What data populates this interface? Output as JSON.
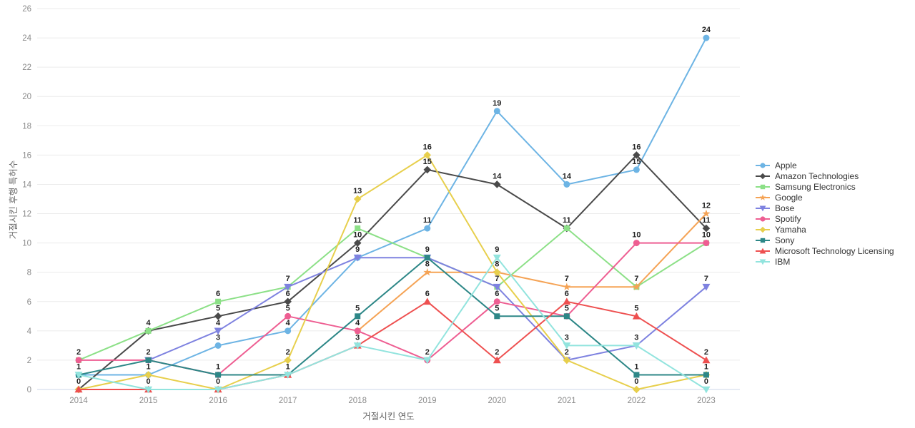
{
  "chart_data": {
    "type": "line",
    "title": "",
    "xlabel": "거절시킨 연도",
    "ylabel": "거절시킨 후행 특허수",
    "x": [
      2014,
      2015,
      2016,
      2017,
      2018,
      2019,
      2020,
      2021,
      2022,
      2023
    ],
    "ylim": [
      0,
      26
    ],
    "yticks": [
      0,
      2,
      4,
      6,
      8,
      10,
      12,
      14,
      16,
      18,
      20,
      22,
      24,
      26
    ],
    "grid": "horizontal",
    "legend_position": "right",
    "point_labels": "shown above each point, deduplicated per x/value cluster",
    "series": [
      {
        "name": "Apple",
        "color": "#6db4e4",
        "marker": "circle",
        "values": [
          1,
          1,
          3,
          4,
          9,
          11,
          19,
          14,
          15,
          24
        ]
      },
      {
        "name": "Amazon Technologies",
        "color": "#4a4a4a",
        "marker": "diamond",
        "values": [
          0,
          4,
          5,
          6,
          10,
          15,
          14,
          11,
          16,
          11
        ]
      },
      {
        "name": "Samsung Electronics",
        "color": "#8ce087",
        "marker": "square",
        "values": [
          2,
          4,
          6,
          7,
          11,
          9,
          7,
          11,
          7,
          10
        ]
      },
      {
        "name": "Google",
        "color": "#f5a355",
        "marker": "star",
        "values": [
          null,
          null,
          null,
          null,
          4,
          8,
          8,
          7,
          7,
          12
        ]
      },
      {
        "name": "Bose",
        "color": "#7e82e0",
        "marker": "triangle-down",
        "values": [
          null,
          2,
          4,
          7,
          9,
          9,
          7,
          2,
          3,
          7
        ]
      },
      {
        "name": "Spotify",
        "color": "#ee5e92",
        "marker": "circle",
        "values": [
          2,
          2,
          1,
          5,
          4,
          2,
          6,
          5,
          10,
          10
        ]
      },
      {
        "name": "Yamaha",
        "color": "#e7cf4c",
        "marker": "diamond",
        "values": [
          0,
          1,
          0,
          2,
          13,
          16,
          8,
          2,
          0,
          1
        ]
      },
      {
        "name": "Sony",
        "color": "#2d8787",
        "marker": "square",
        "values": [
          1,
          2,
          1,
          1,
          5,
          9,
          5,
          5,
          1,
          1
        ]
      },
      {
        "name": "Microsoft Technology Licensing",
        "color": "#ee5050",
        "marker": "triangle-up",
        "values": [
          0,
          0,
          0,
          1,
          3,
          6,
          2,
          6,
          5,
          2
        ]
      },
      {
        "name": "IBM",
        "color": "#92e4de",
        "marker": "triangle-down",
        "values": [
          1,
          0,
          0,
          1,
          3,
          2,
          9,
          3,
          3,
          0
        ]
      }
    ]
  },
  "style": {
    "background": "#ffffff",
    "grid_color": "#ebebeb",
    "zero_line_color": "#ccd7e8",
    "tick_text_color": "#8c8c8c",
    "axis_title_color": "#666666",
    "point_label_color": "#1f1f1f",
    "legend_text_color": "#333333"
  }
}
